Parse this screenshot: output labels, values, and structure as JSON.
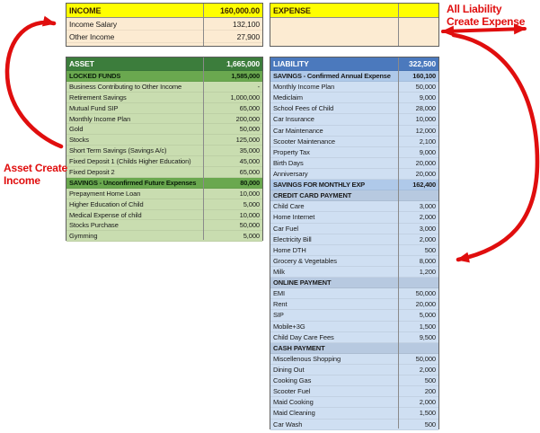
{
  "colors": {
    "header_yellow": "#FFFF00",
    "body_cream": "#FCEBD2",
    "asset_header_green": "#3C7D3C",
    "asset_section_green": "#6AA84F",
    "asset_row_green": "#C9DDB0",
    "liability_header_blue": "#4B79BD",
    "liability_section_blue": "#AFC9E9",
    "liability_subheader_blue": "#B7C9E0",
    "liability_row_blue": "#CFDFF2",
    "annotation_red": "#E00E0E"
  },
  "annotations": {
    "asset_income": {
      "text": "Asset Create Income"
    },
    "liability_expense": {
      "lines": [
        "All Liability",
        "Create Expense"
      ]
    }
  },
  "tables": {
    "income": {
      "rows": [
        {
          "kind": "header",
          "label": "INCOME",
          "value": "160,000.00"
        },
        {
          "kind": "item",
          "label": "Income Salary",
          "value": "132,100"
        },
        {
          "kind": "item",
          "label": "Other Income",
          "value": "27,900"
        }
      ]
    },
    "expense": {
      "rows": [
        {
          "kind": "header",
          "label": "EXPENSE",
          "value": ""
        }
      ]
    },
    "asset": {
      "rows": [
        {
          "kind": "header",
          "label": "ASSET",
          "value": "1,665,000"
        },
        {
          "kind": "section",
          "label": "LOCKED FUNDS",
          "value": "1,585,000"
        },
        {
          "kind": "item",
          "label": "Business Contributing to Other Income",
          "value": "-"
        },
        {
          "kind": "item",
          "label": "Retirement Savings",
          "value": "1,000,000"
        },
        {
          "kind": "item",
          "label": "Mutual Fund SIP",
          "value": "65,000"
        },
        {
          "kind": "item",
          "label": "Monthly Income Plan",
          "value": "200,000"
        },
        {
          "kind": "item",
          "label": "Gold",
          "value": "50,000"
        },
        {
          "kind": "item",
          "label": "Stocks",
          "value": "125,000"
        },
        {
          "kind": "item",
          "label": "Short Term Savings (Savings A/c)",
          "value": "35,000"
        },
        {
          "kind": "item",
          "label": "Fixed Deposit 1 (Childs Higher Education)",
          "value": "45,000"
        },
        {
          "kind": "item",
          "label": "Fixed Deposit 2",
          "value": "65,000"
        },
        {
          "kind": "section",
          "label": "SAVINGS - Unconfirmed Future Expenses",
          "value": "80,000"
        },
        {
          "kind": "item",
          "label": "Prepayment Home Loan",
          "value": "10,000"
        },
        {
          "kind": "item",
          "label": "Higher Education of Child",
          "value": "5,000"
        },
        {
          "kind": "item",
          "label": "Medical Expense of child",
          "value": "10,000"
        },
        {
          "kind": "item",
          "label": "Stocks Purchase",
          "value": "50,000"
        },
        {
          "kind": "item",
          "label": "Gymming",
          "value": "5,000"
        }
      ]
    },
    "liability": {
      "rows": [
        {
          "kind": "header",
          "label": "LIABILITY",
          "value": "322,500"
        },
        {
          "kind": "section",
          "label": "SAVINGS - Confirmed Annual Expense",
          "value": "160,100"
        },
        {
          "kind": "item",
          "label": "Monthly Income Plan",
          "value": "50,000"
        },
        {
          "kind": "item",
          "label": "Mediclaim",
          "value": "9,000"
        },
        {
          "kind": "item",
          "label": "School Fees of Child",
          "value": "28,000"
        },
        {
          "kind": "item",
          "label": "Car Insurance",
          "value": "10,000"
        },
        {
          "kind": "item",
          "label": "Car Maintenance",
          "value": "12,000"
        },
        {
          "kind": "item",
          "label": "Scooter Maintenance",
          "value": "2,100"
        },
        {
          "kind": "item",
          "label": "Property Tax",
          "value": "9,000"
        },
        {
          "kind": "item",
          "label": "Birth Days",
          "value": "20,000"
        },
        {
          "kind": "item",
          "label": "Anniversary",
          "value": "20,000"
        },
        {
          "kind": "section",
          "label": "SAVINGS FOR MONTHLY EXP",
          "value": "162,400"
        },
        {
          "kind": "subheader",
          "label": "CREDIT CARD PAYMENT",
          "value": ""
        },
        {
          "kind": "item",
          "label": "Child Care",
          "value": "3,000"
        },
        {
          "kind": "item",
          "label": "Home Internet",
          "value": "2,000"
        },
        {
          "kind": "item",
          "label": "Car Fuel",
          "value": "3,000"
        },
        {
          "kind": "item",
          "label": "Electricity Bill",
          "value": "2,000"
        },
        {
          "kind": "item",
          "label": "Home DTH",
          "value": "500"
        },
        {
          "kind": "item",
          "label": "Grocery & Vegetables",
          "value": "8,000"
        },
        {
          "kind": "item",
          "label": "Milk",
          "value": "1,200"
        },
        {
          "kind": "subheader",
          "label": "ONLINE PAYMENT",
          "value": ""
        },
        {
          "kind": "item",
          "label": "EMI",
          "value": "50,000"
        },
        {
          "kind": "item",
          "label": "Rent",
          "value": "20,000"
        },
        {
          "kind": "item",
          "label": "SIP",
          "value": "5,000"
        },
        {
          "kind": "item",
          "label": "Mobile+3G",
          "value": "1,500"
        },
        {
          "kind": "item",
          "label": "Child Day Care Fees",
          "value": "9,500"
        },
        {
          "kind": "subheader",
          "label": "CASH PAYMENT",
          "value": ""
        },
        {
          "kind": "item",
          "label": "Miscellenous Shopping",
          "value": "50,000"
        },
        {
          "kind": "item",
          "label": "Dining Out",
          "value": "2,000"
        },
        {
          "kind": "item",
          "label": "Cooking Gas",
          "value": "500"
        },
        {
          "kind": "item",
          "label": "Scooter Fuel",
          "value": "200"
        },
        {
          "kind": "item",
          "label": "Maid Cooking",
          "value": "2,000"
        },
        {
          "kind": "item",
          "label": "Maid Cleaning",
          "value": "1,500"
        },
        {
          "kind": "item",
          "label": "Car Wash",
          "value": "500"
        }
      ]
    }
  }
}
